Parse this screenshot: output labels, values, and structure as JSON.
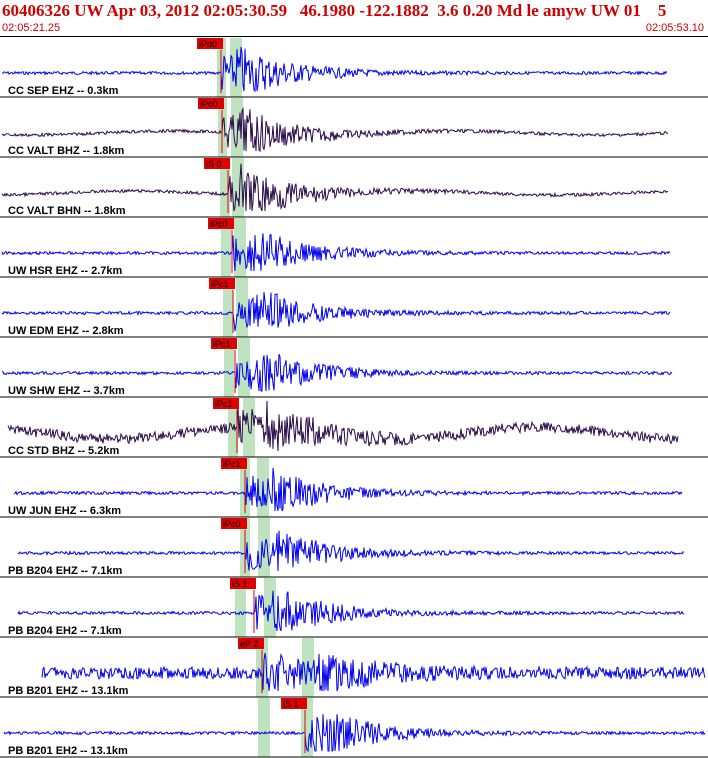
{
  "header": {
    "title": "60406326 UW Apr 03, 2012 02:05:30.59   46.1980 -122.1882  3.6 0.20 Md le amyw UW 01    5",
    "time_start": "02:05:21.25",
    "time_end": "02:05:53.10"
  },
  "colors": {
    "header_text": "#d00000",
    "pick_box": "#e00000",
    "band": "#bfe3bf",
    "trace_blue": "#0000ee",
    "trace_purple": "#2a0a4a"
  },
  "channels": [
    {
      "label": "CC SEP EHZ -- 0.3km",
      "pick": "iPd0",
      "color": "blue",
      "amp": 1
    },
    {
      "label": "CC VALT BHZ -- 1.8km",
      "pick": "iPc0",
      "color": "purple",
      "amp": 1
    },
    {
      "label": "CC VALT BHN -- 1.8km",
      "pick": "iS 0",
      "color": "purple",
      "amp": 1
    },
    {
      "label": "UW HSR EHZ -- 2.7km",
      "pick": "iPc0",
      "color": "blue",
      "amp": 1
    },
    {
      "label": "UW EDM EHZ -- 2.8km",
      "pick": "iPc1",
      "color": "blue",
      "amp": 1
    },
    {
      "label": "UW SHW EHZ -- 3.7km",
      "pick": "iPc1",
      "color": "blue",
      "amp": 1
    },
    {
      "label": "CC STD BHZ -- 5.2km",
      "pick": "iPc1",
      "color": "purple",
      "amp": 1
    },
    {
      "label": "UW JUN EHZ -- 6.3km",
      "pick": "iPc1",
      "color": "blue",
      "amp": 1
    },
    {
      "label": "PB B204 EHZ -- 7.1km",
      "pick": "iPc0",
      "color": "blue",
      "amp": 1
    },
    {
      "label": "PB B204 EH2 -- 7.1km",
      "pick": "iS 1",
      "color": "blue",
      "amp": 1
    },
    {
      "label": "PB B201 EHZ -- 13.1km",
      "pick": "eP 2",
      "color": "blue",
      "amp": 1
    },
    {
      "label": "PB B201 EH2 -- 13.1km",
      "pick": "iS 1",
      "color": "blue",
      "amp": 1
    }
  ]
}
